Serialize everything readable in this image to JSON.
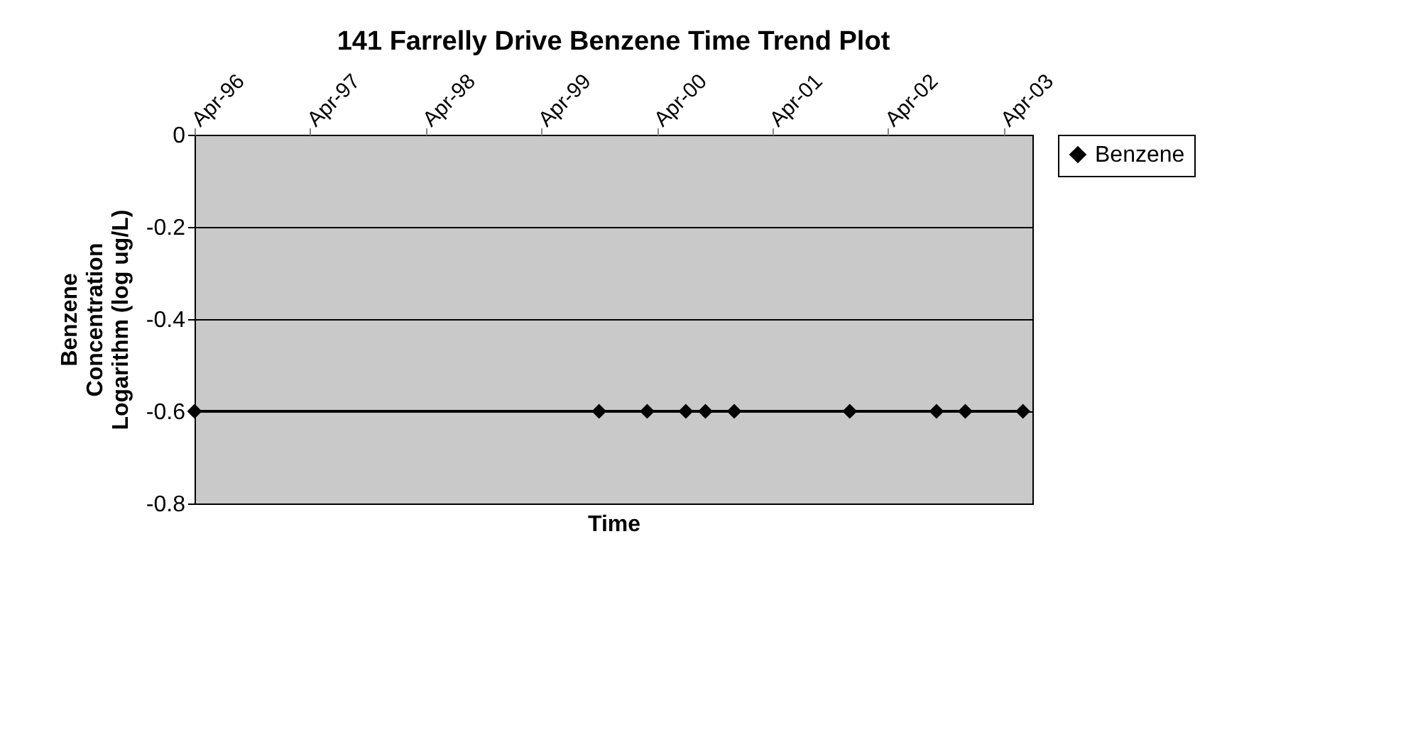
{
  "chart_data": {
    "type": "line",
    "title": "141 Farrelly Drive Benzene Time Trend Plot",
    "xlabel": "Time",
    "ylabel": "Benzene\nConcentration\nLogarithm (log ug/L)",
    "x": [
      "1996-04",
      "1999-10",
      "2000-03",
      "2000-07",
      "2000-09",
      "2000-12",
      "2001-12",
      "2002-09",
      "2002-12",
      "2003-06"
    ],
    "series": [
      {
        "name": "Benzene",
        "color": "#000000",
        "values": [
          -0.6,
          -0.6,
          -0.6,
          -0.6,
          -0.6,
          -0.6,
          -0.6,
          -0.6,
          -0.6,
          -0.6
        ]
      }
    ],
    "xlim": [
      "1996-04",
      "2003-07"
    ],
    "xticks": [
      {
        "value": "1996-04",
        "label": "Apr-96"
      },
      {
        "value": "1997-04",
        "label": "Apr-97"
      },
      {
        "value": "1998-04",
        "label": "Apr-98"
      },
      {
        "value": "1999-04",
        "label": "Apr-99"
      },
      {
        "value": "2000-04",
        "label": "Apr-00"
      },
      {
        "value": "2001-04",
        "label": "Apr-01"
      },
      {
        "value": "2002-04",
        "label": "Apr-02"
      },
      {
        "value": "2003-04",
        "label": "Apr-03"
      }
    ],
    "ylim": [
      -0.8,
      0
    ],
    "yticks": [
      0,
      -0.2,
      -0.4,
      -0.6,
      -0.8
    ],
    "grid": "y",
    "legend": "right",
    "marker": "diamond",
    "line_style": "solid"
  }
}
